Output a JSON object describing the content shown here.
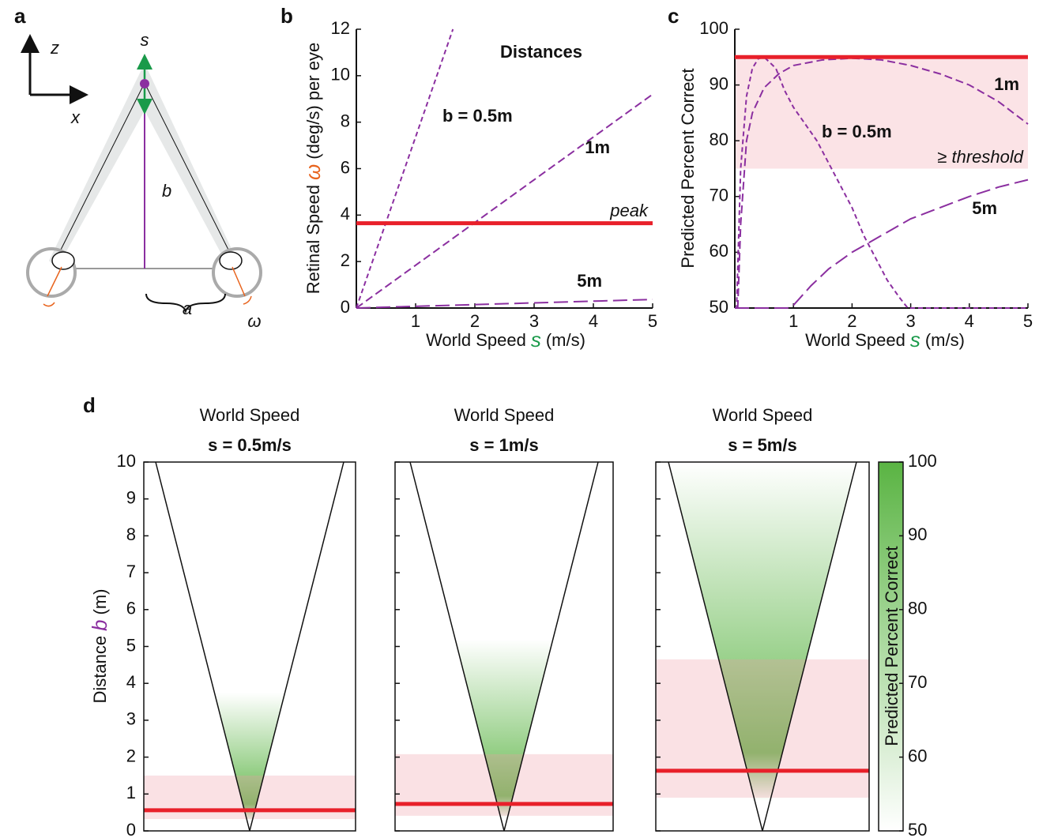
{
  "diagram": {
    "panel": "a",
    "axes": [
      "z",
      "x"
    ],
    "speed": "s",
    "distance": "b",
    "separation": "a",
    "rotation": "ω"
  },
  "chart_data": [
    {
      "panel": "b",
      "type": "line",
      "xlabel": [
        "World Speed",
        "s",
        "(m/s)"
      ],
      "xlabel_symbol_color": "#1a9a4a",
      "ylabel": [
        "Retinal Speed",
        "ω",
        "(deg/s) per eye"
      ],
      "ylabel_symbol_color": "#e8641e",
      "xlim": [
        0,
        5
      ],
      "ylim": [
        0,
        12
      ],
      "xticks": [
        1,
        2,
        3,
        4,
        5
      ],
      "yticks": [
        0,
        2,
        4,
        6,
        8,
        10,
        12
      ],
      "legend_title": "Distances",
      "series": [
        {
          "name": "b = 0.5m",
          "color": "#8b2fa0",
          "dash": "short",
          "x": [
            0,
            1.63
          ],
          "values": [
            0,
            12
          ]
        },
        {
          "name": "1m",
          "color": "#8b2fa0",
          "dash": "medium",
          "x": [
            0,
            5
          ],
          "values": [
            0,
            9.2
          ]
        },
        {
          "name": "5m",
          "color": "#8b2fa0",
          "dash": "long",
          "x": [
            0,
            5
          ],
          "values": [
            0,
            0.37
          ]
        }
      ],
      "peak": {
        "value": 3.65,
        "label": "peak",
        "color": "#e8202a"
      }
    },
    {
      "panel": "c",
      "type": "line",
      "xlabel": [
        "World Speed",
        "s",
        "(m/s)"
      ],
      "xlabel_symbol_color": "#1a9a4a",
      "ylabel": [
        "Predicted Percent Correct"
      ],
      "xlim": [
        0,
        5
      ],
      "ylim": [
        50,
        100
      ],
      "xticks": [
        1,
        2,
        3,
        4,
        5
      ],
      "yticks": [
        50,
        60,
        70,
        80,
        90,
        100
      ],
      "series": [
        {
          "name": "1m",
          "color": "#8b2fa0",
          "dash": "medium",
          "x": [
            0.05,
            0.1,
            0.2,
            0.3,
            0.5,
            0.75,
            1,
            1.5,
            2,
            2.5,
            3,
            3.5,
            4,
            4.5,
            5
          ],
          "values": [
            50,
            65,
            80,
            85,
            89.5,
            92,
            93.5,
            94.5,
            94.8,
            94.5,
            93.5,
            92,
            90,
            87,
            83
          ]
        },
        {
          "name": "b = 0.5m",
          "color": "#8b2fa0",
          "dash": "short",
          "x": [
            0,
            0.03,
            0.1,
            0.2,
            0.3,
            0.4,
            0.5,
            0.7,
            0.85,
            1,
            1.2,
            1.4,
            1.6,
            1.8,
            2,
            2.2,
            2.4,
            2.6,
            2.8,
            2.95,
            5
          ],
          "values": [
            50,
            50,
            75,
            88,
            93,
            94.7,
            95,
            93,
            89,
            86,
            83,
            80,
            76,
            72,
            68,
            63,
            59,
            55,
            52,
            50,
            50
          ]
        },
        {
          "name": "5m",
          "color": "#8b2fa0",
          "dash": "long",
          "x": [
            0,
            0.9,
            1,
            1.3,
            1.6,
            2,
            2.5,
            3,
            3.5,
            4,
            4.5,
            5
          ],
          "values": [
            50,
            50,
            50.5,
            54,
            57,
            60,
            63,
            66,
            68,
            70,
            71.7,
            73
          ]
        }
      ],
      "peak": {
        "value": 95,
        "color": "#e8202a"
      },
      "threshold": {
        "range": [
          75,
          95
        ],
        "label": "≥ threshold",
        "color": "#fbe3e6"
      }
    },
    {
      "panel": "d",
      "type": "cone",
      "ylabel": [
        "Distance",
        "b",
        "(m)"
      ],
      "ylabel_symbol_color": "#8b2fa0",
      "ylim": [
        0,
        10
      ],
      "yticks": [
        0,
        1,
        2,
        3,
        4,
        5,
        6,
        7,
        8,
        9,
        10
      ],
      "subtitle_color": "#1a9a4a",
      "peak_color": "#e8202a",
      "threshold_color": "#ef9aa5",
      "panels": [
        {
          "title": "World Speed",
          "subtitle": "s = 0.5m/s",
          "peak": 0.56,
          "threshold": [
            0.32,
            1.5
          ]
        },
        {
          "title": "World Speed",
          "subtitle": "s = 1m/s",
          "peak": 0.73,
          "threshold": [
            0.41,
            2.08
          ]
        },
        {
          "title": "World Speed",
          "subtitle": "s = 5m/s",
          "peak": 1.63,
          "threshold": [
            0.9,
            4.65
          ]
        }
      ],
      "colorbar": {
        "label": "Predicted Percent Correct",
        "ylim": [
          50,
          100
        ],
        "yticks": [
          50,
          60,
          70,
          80,
          90,
          100
        ],
        "color": "#5ab443"
      }
    }
  ]
}
